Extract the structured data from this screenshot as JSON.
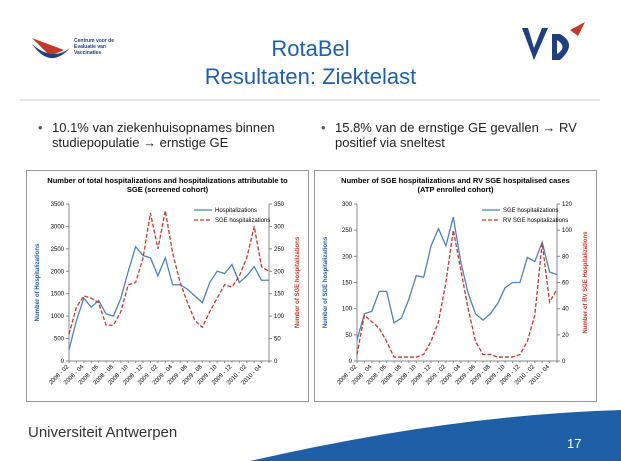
{
  "slide": {
    "logo_text": [
      "Centrum voor de",
      "Evaluatie van",
      "Vaccinaties"
    ],
    "title": "RotaBel",
    "subtitle": "Resultaten:  Ziektelast",
    "bullets": [
      "10.1% van ziekenhuisopnames binnen studiepopulatie → ernstige GE",
      "15.8% van de ernstige GE gevallen → RV positief via sneltest"
    ],
    "footer": "Universiteit Antwerpen",
    "page_number": "17"
  },
  "chart_data": [
    {
      "type": "line",
      "title": "Number of total hospitalizations and hospitalizations attributable to SGE (screened cohort)",
      "y_label": "Number of Hospitalizations",
      "y2_label": "Number of SGE hospitalizations",
      "categories": [
        "2008 - 02",
        null,
        "2008 - 04",
        null,
        "2008 - 06",
        null,
        "2008 - 08",
        null,
        "2008 - 10",
        null,
        "2008 - 12",
        null,
        "2009 - 02",
        null,
        "2009 - 04",
        null,
        "2009 - 06",
        null,
        "2009 - 08",
        null,
        "2009 - 10",
        null,
        "2009 - 12",
        null,
        "2010 - 02",
        null,
        "2010 - 04",
        null
      ],
      "ylim": [
        0,
        3500
      ],
      "yticks": [
        0,
        500,
        1000,
        1500,
        2000,
        2500,
        3000,
        3500
      ],
      "y2lim": [
        0,
        350
      ],
      "y2ticks": [
        0,
        50,
        100,
        150,
        200,
        250,
        300,
        350
      ],
      "legend": "upper right",
      "series": [
        {
          "name": "Hospitalizations",
          "color": "#4f81bd",
          "dash": false,
          "values": [
            250,
            900,
            1400,
            1200,
            1350,
            1050,
            1000,
            1400,
            2000,
            2550,
            2350,
            2300,
            1900,
            2300,
            1700,
            1700,
            1600,
            1450,
            1300,
            1750,
            2000,
            1950,
            2150,
            1750,
            1900,
            2100,
            1800,
            1800
          ]
        },
        {
          "name": "SGE hospitalizations",
          "color": "#c0392b",
          "dash": true,
          "axis": "y2",
          "values": [
            60,
            120,
            145,
            140,
            130,
            80,
            80,
            110,
            170,
            175,
            230,
            330,
            250,
            335,
            240,
            175,
            130,
            90,
            75,
            110,
            140,
            170,
            165,
            190,
            230,
            300,
            210,
            200
          ]
        }
      ]
    },
    {
      "type": "line",
      "title": "Number of SGE hospitalizations and RV SGE hospitalised cases (ATP enrolled cohort)",
      "y_label": "Number of SGE hospitalizations",
      "y2_label": "Number of RV SGE Hospitalizations",
      "categories": [
        "2008 - 02",
        null,
        "2008 - 04",
        null,
        "2008 - 06",
        null,
        "2008 - 08",
        null,
        "2008 - 10",
        null,
        "2008 - 12",
        null,
        "2009 - 02",
        null,
        "2009 - 04",
        null,
        "2009 - 06",
        null,
        "2009 - 08",
        null,
        "2009 - 10",
        null,
        "2009 - 12",
        null,
        "2010 - 02",
        null,
        "2010 - 04",
        null
      ],
      "ylim": [
        0,
        300
      ],
      "yticks": [
        0,
        50,
        100,
        150,
        200,
        250,
        300
      ],
      "y2lim": [
        0,
        120
      ],
      "y2ticks": [
        0,
        20,
        40,
        60,
        80,
        100,
        120
      ],
      "legend": "upper right",
      "series": [
        {
          "name": "SGE hospitalizations",
          "color": "#4f81bd",
          "dash": false,
          "values": [
            40,
            90,
            95,
            133,
            133,
            73,
            82,
            118,
            163,
            160,
            220,
            253,
            220,
            275,
            190,
            130,
            90,
            78,
            90,
            110,
            140,
            150,
            150,
            198,
            190,
            227,
            170,
            165
          ]
        },
        {
          "name": "RV SGE hospitalizations",
          "color": "#c0392b",
          "dash": true,
          "axis": "y2",
          "values": [
            5,
            35,
            30,
            25,
            15,
            3,
            3,
            3,
            3,
            5,
            15,
            30,
            60,
            100,
            70,
            40,
            15,
            5,
            5,
            3,
            3,
            3,
            5,
            15,
            35,
            90,
            45,
            55
          ]
        }
      ]
    }
  ]
}
